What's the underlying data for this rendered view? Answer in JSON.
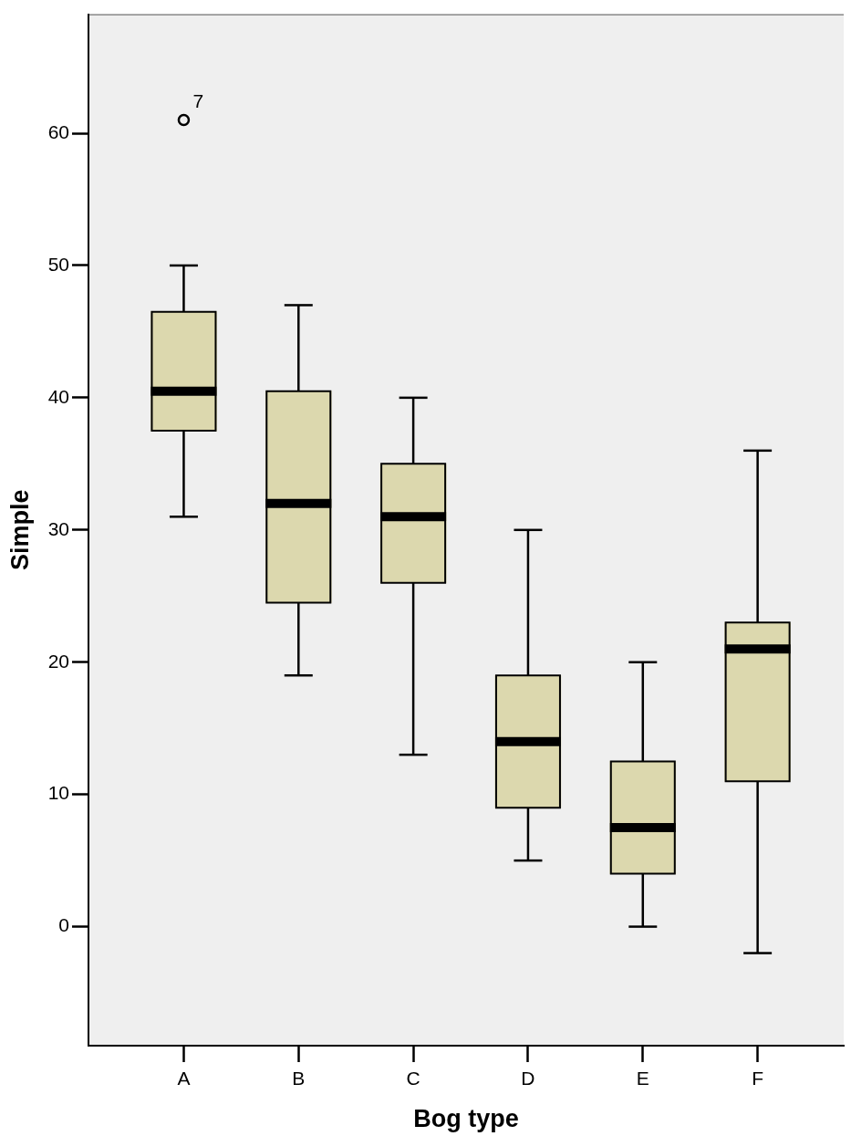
{
  "chart_data": {
    "type": "box",
    "xlabel": "Bog type",
    "ylabel": "Simple",
    "categories": [
      "A",
      "B",
      "C",
      "D",
      "E",
      "F"
    ],
    "boxes": [
      {
        "low": 31,
        "q1": 37.5,
        "median": 40.5,
        "q3": 46.5,
        "high": 50,
        "outliers": [
          61
        ]
      },
      {
        "low": 19,
        "q1": 24.5,
        "median": 32,
        "q3": 40.5,
        "high": 47
      },
      {
        "low": 13,
        "q1": 26,
        "median": 31,
        "q3": 35,
        "high": 40
      },
      {
        "low": 5,
        "q1": 9,
        "median": 14,
        "q3": 19,
        "high": 30
      },
      {
        "low": 0,
        "q1": 4,
        "median": 7.5,
        "q3": 12.5,
        "high": 20
      },
      {
        "low": -2,
        "q1": 11,
        "median": 21,
        "q3": 23,
        "high": 36
      }
    ],
    "color": "#dcd8ae",
    "ylim": [
      -9,
      69
    ],
    "yticks": [
      0,
      10,
      20,
      30,
      40,
      50,
      60
    ],
    "annotations": [
      "7"
    ]
  }
}
